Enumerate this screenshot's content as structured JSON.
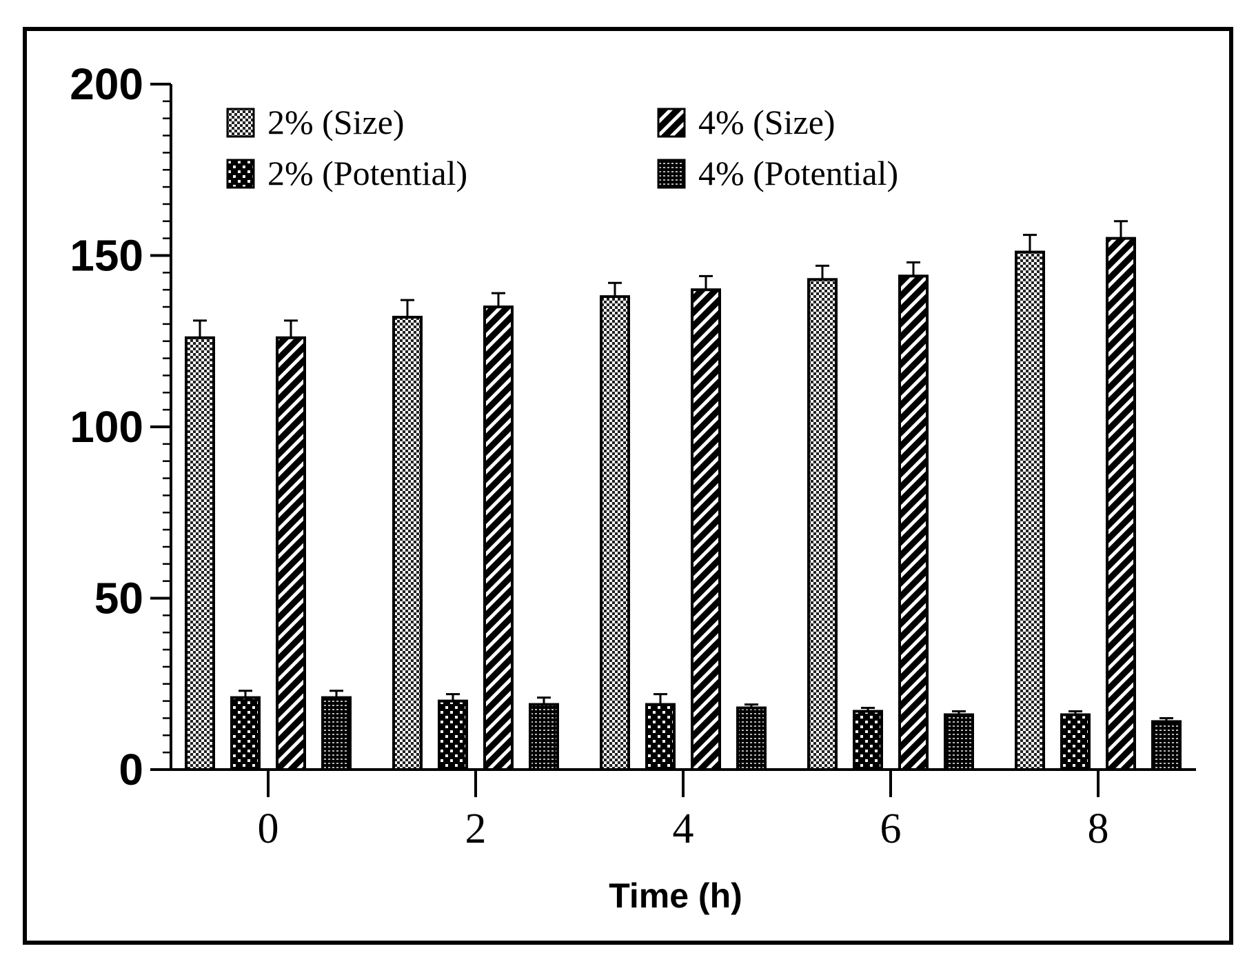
{
  "chart_data": {
    "type": "bar",
    "title": "",
    "xlabel": "Time (h)",
    "ylabel": "",
    "ylim": [
      0,
      200
    ],
    "yticks": [
      0,
      50,
      100,
      150,
      200
    ],
    "y_minor_tick_step": 5,
    "categories": [
      "0",
      "2",
      "4",
      "6",
      "8"
    ],
    "legend_position": "top",
    "series": [
      {
        "name": "2% (Size)",
        "pattern": "checker-fine",
        "values": [
          126,
          132,
          138,
          143,
          151
        ],
        "errors": [
          5,
          5,
          4,
          4,
          5
        ]
      },
      {
        "name": "2% (Potential)",
        "pattern": "checker-coarse",
        "values": [
          21,
          20,
          19,
          17,
          16
        ],
        "errors": [
          2,
          2,
          3,
          1,
          1
        ]
      },
      {
        "name": "4% (Size)",
        "pattern": "diagonal-stripes",
        "values": [
          126,
          135,
          140,
          144,
          155
        ],
        "errors": [
          5,
          4,
          4,
          4,
          5
        ]
      },
      {
        "name": "4% (Potential)",
        "pattern": "dots-dense",
        "values": [
          21,
          19,
          18,
          16,
          14
        ],
        "errors": [
          2,
          2,
          1,
          1,
          1
        ]
      }
    ],
    "legend_order": [
      0,
      2,
      1,
      3
    ],
    "colors": {
      "ink": "#000000",
      "background": "#ffffff"
    }
  }
}
